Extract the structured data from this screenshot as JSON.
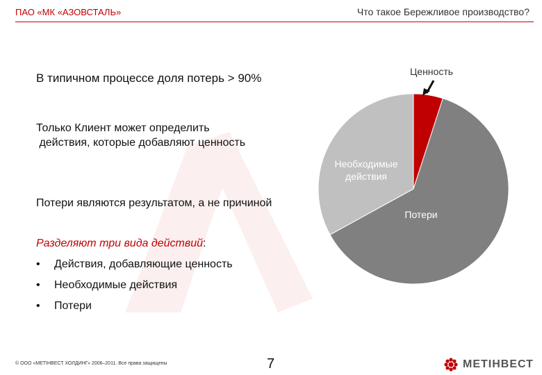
{
  "header": {
    "company": "ПАО «МК «АЗОВСТАЛЬ»",
    "title": "Что такое Бережливое производство?"
  },
  "statements": [
    "В типичном процессе доля потерь > 90%",
    "Только Клиент может определить",
    " действия, которые добавляют ценность",
    "Потери являются результатом, а не причиной"
  ],
  "types": {
    "heading_emph": "Разделяют три вида действий",
    "heading_tail": ":",
    "bullet": "•",
    "items": [
      "Действия, добавляющие ценность",
      "Необходимые действия",
      "Потери"
    ]
  },
  "chart_data": {
    "type": "pie",
    "title": "",
    "slices": [
      {
        "label": "Ценность",
        "value": 5,
        "color": "#c00000",
        "label_color": "#333333"
      },
      {
        "label": "Потери",
        "value": 62,
        "color": "#808080",
        "label_color": "#ffffff"
      },
      {
        "label": "Необходимые действия",
        "label_lines": [
          "Необходимые",
          "действия"
        ],
        "value": 33,
        "color": "#c0c0c0",
        "label_color": "#ffffff"
      }
    ],
    "start": "12 o'clock",
    "direction": "clockwise",
    "legend": "none"
  },
  "footer": {
    "copyright": "© ООО «МЕТІНВЕСТ ХОЛДИНГ» 2006–2011. Все права защищены",
    "page": "7",
    "brand": "МЕТІНВЕСТ",
    "brand_color": "#c00000"
  }
}
